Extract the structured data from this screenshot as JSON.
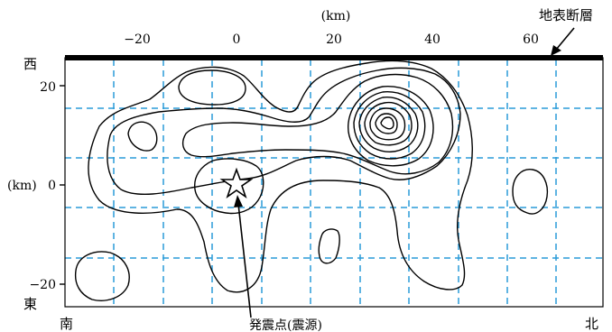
{
  "figure": {
    "x_unit": "(km)",
    "y_unit": "(km)",
    "x_ticks": [
      "−20",
      "0",
      "20",
      "40",
      "60"
    ],
    "y_ticks": [
      "20",
      "0",
      "−20"
    ],
    "label_west": "西",
    "label_east": "東",
    "label_south": "南",
    "label_north": "北",
    "surface_fault_label": "地表断層",
    "hypocenter_label": "発震点(震源)",
    "colors": {
      "grid": "#2a9bd8",
      "ink": "#000000"
    }
  }
}
